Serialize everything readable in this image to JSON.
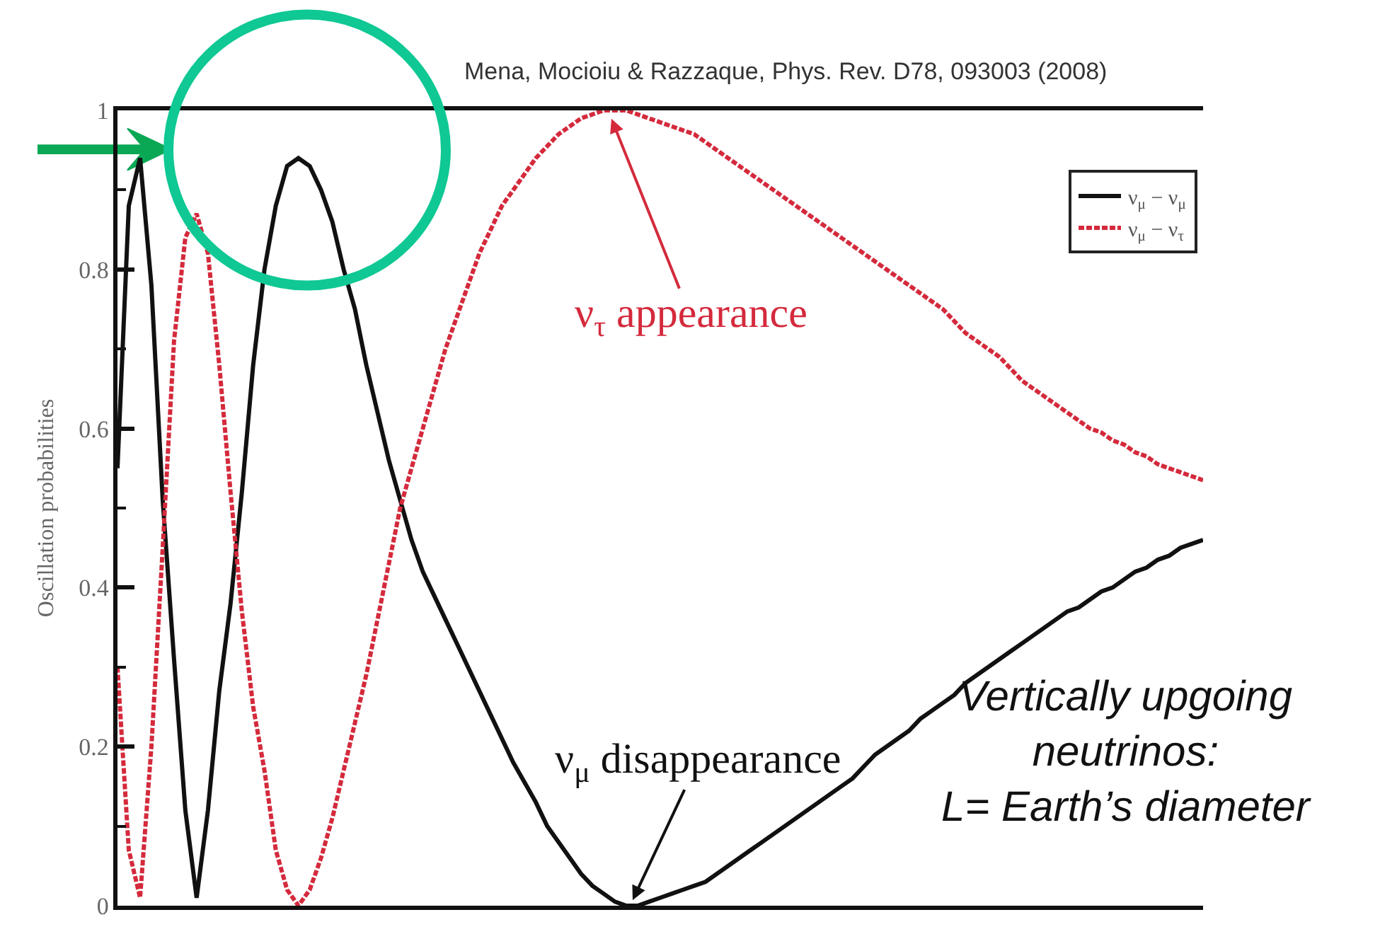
{
  "chart_data": {
    "type": "line",
    "ylabel": "Oscillation probabilities",
    "annotations": [
      "Mena, Mocioiu & Razzaque, Phys. Rev. D78, 093003 (2008)",
      "ν$_{τ}$ appearance",
      "ν$_{μ}$ disappearance",
      "Vertically upgoing\nneutrinos:\nL= Earth’s diameter"
    ],
    "categories": [
      null,
      null,
      null,
      null,
      null,
      null,
      null,
      null,
      null,
      null,
      null,
      null,
      null,
      null,
      null,
      null,
      null,
      null,
      null,
      null,
      null,
      null,
      null,
      null,
      null,
      null,
      null,
      null,
      null,
      null,
      null,
      null,
      null,
      null,
      null,
      null,
      null,
      null,
      null,
      null,
      null,
      null,
      null,
      null,
      null,
      null,
      null,
      null,
      null,
      null,
      null,
      null,
      null,
      null,
      null,
      null,
      null,
      null,
      null,
      null,
      null,
      null,
      null,
      null,
      null,
      null,
      null,
      null,
      null,
      null,
      null,
      null,
      null,
      null,
      null,
      null,
      null,
      null,
      null,
      null,
      null,
      null,
      null,
      null,
      null,
      null,
      null,
      null,
      null,
      null,
      null,
      null,
      null,
      null,
      null,
      null,
      null
    ],
    "ylim": [
      0,
      1
    ],
    "yticks": [
      0,
      {
        "value": 0.1,
        "label": null
      },
      0.2,
      {
        "value": 0.3,
        "label": null
      },
      0.4,
      {
        "value": 0.5,
        "label": null
      },
      0.6,
      {
        "value": 0.7,
        "label": null
      },
      0.8,
      {
        "value": 0.9,
        "label": null
      },
      1
    ],
    "legend": "top right",
    "series": [
      {
        "name": "ν$_{μ}$ − ν$_{μ}$",
        "color": "#111111",
        "line_style": "solid",
        "values": [
          0.55,
          0.88,
          0.94,
          0.78,
          0.51,
          0.31,
          0.12,
          0.01,
          0.12,
          0.27,
          0.38,
          0.52,
          0.68,
          0.8,
          0.88,
          0.93,
          0.94,
          0.93,
          0.9,
          0.86,
          0.8,
          0.75,
          0.68,
          0.62,
          0.56,
          0.51,
          0.46,
          0.42,
          0.39,
          0.36,
          0.33,
          0.3,
          0.27,
          0.24,
          0.21,
          0.18,
          0.155,
          0.13,
          0.1,
          0.08,
          0.06,
          0.04,
          0.025,
          0.015,
          0.005,
          0,
          0,
          0.005,
          0.01,
          0.015,
          0.02,
          0.025,
          0.03,
          0.04,
          0.05,
          0.06,
          0.07,
          0.08,
          0.09,
          0.1,
          0.11,
          0.12,
          0.13,
          0.14,
          0.15,
          0.16,
          0.175,
          0.19,
          0.2,
          0.21,
          0.22,
          0.235,
          0.245,
          0.255,
          0.265,
          0.28,
          0.29,
          0.3,
          0.31,
          0.32,
          0.33,
          0.34,
          0.35,
          0.36,
          0.37,
          0.375,
          0.385,
          0.395,
          0.4,
          0.41,
          0.42,
          0.425,
          0.435,
          0.44,
          0.45,
          0.455,
          0.46
        ]
      },
      {
        "name": "ν$_{μ}$ − ν$_{τ}$",
        "color": "#d42a3c",
        "line_style": "dotted",
        "values": [
          0.3,
          0.07,
          0.01,
          0.2,
          0.45,
          0.71,
          0.84,
          0.87,
          0.82,
          0.68,
          0.52,
          0.37,
          0.25,
          0.17,
          0.07,
          0.02,
          0,
          0.02,
          0.06,
          0.11,
          0.17,
          0.23,
          0.29,
          0.36,
          0.43,
          0.5,
          0.55,
          0.6,
          0.65,
          0.7,
          0.74,
          0.78,
          0.82,
          0.85,
          0.88,
          0.9,
          0.92,
          0.94,
          0.955,
          0.97,
          0.98,
          0.99,
          0.995,
          1,
          1,
          1,
          0.995,
          0.99,
          0.985,
          0.98,
          0.975,
          0.97,
          0.96,
          0.95,
          0.94,
          0.93,
          0.92,
          0.91,
          0.9,
          0.89,
          0.88,
          0.87,
          0.86,
          0.85,
          0.84,
          0.83,
          0.82,
          0.81,
          0.8,
          0.79,
          0.78,
          0.77,
          0.76,
          0.75,
          0.735,
          0.72,
          0.71,
          0.7,
          0.69,
          0.675,
          0.66,
          0.65,
          0.64,
          0.63,
          0.62,
          0.61,
          0.6,
          0.595,
          0.585,
          0.58,
          0.57,
          0.565,
          0.555,
          0.55,
          0.545,
          0.54,
          0.535
        ]
      }
    ]
  }
}
